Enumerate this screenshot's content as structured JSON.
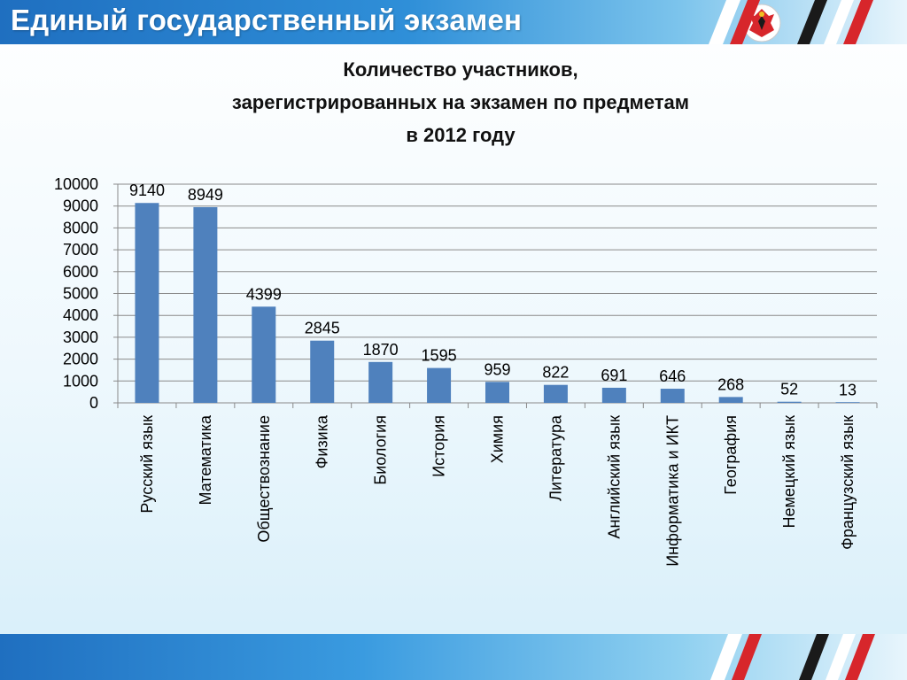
{
  "header": {
    "title": "Единый государственный экзамен"
  },
  "colors": {
    "bar": "#4f81bd",
    "grid": "#8a8a8a",
    "header": "#1f6fc0",
    "stripe_red": "#d7262b",
    "stripe_dark": "#1a1a1a",
    "stripe_white": "#ffffff"
  },
  "icons": {
    "emblem": "republic-coat-of-arms-icon"
  },
  "chart_data": {
    "type": "bar",
    "title": [
      "Количество участников,",
      "зарегистрированных на экзамен по предметам",
      "в 2012 году"
    ],
    "categories": [
      "Русский язык",
      "Математика",
      "Обществознание",
      "Физика",
      "Биология",
      "История",
      "Химия",
      "Литература",
      "Английский язык",
      "Информатика и ИКТ",
      "География",
      "Немецкий язык",
      "Французский язык"
    ],
    "values": [
      9140,
      8949,
      4399,
      2845,
      1870,
      1595,
      959,
      822,
      691,
      646,
      268,
      52,
      13
    ],
    "yticks": [
      0,
      1000,
      2000,
      3000,
      4000,
      5000,
      6000,
      7000,
      8000,
      9000,
      10000
    ],
    "ylim": [
      0,
      10000
    ],
    "xlabel": "",
    "ylabel": "",
    "grid": true,
    "legend": "none",
    "data_labels": true
  }
}
